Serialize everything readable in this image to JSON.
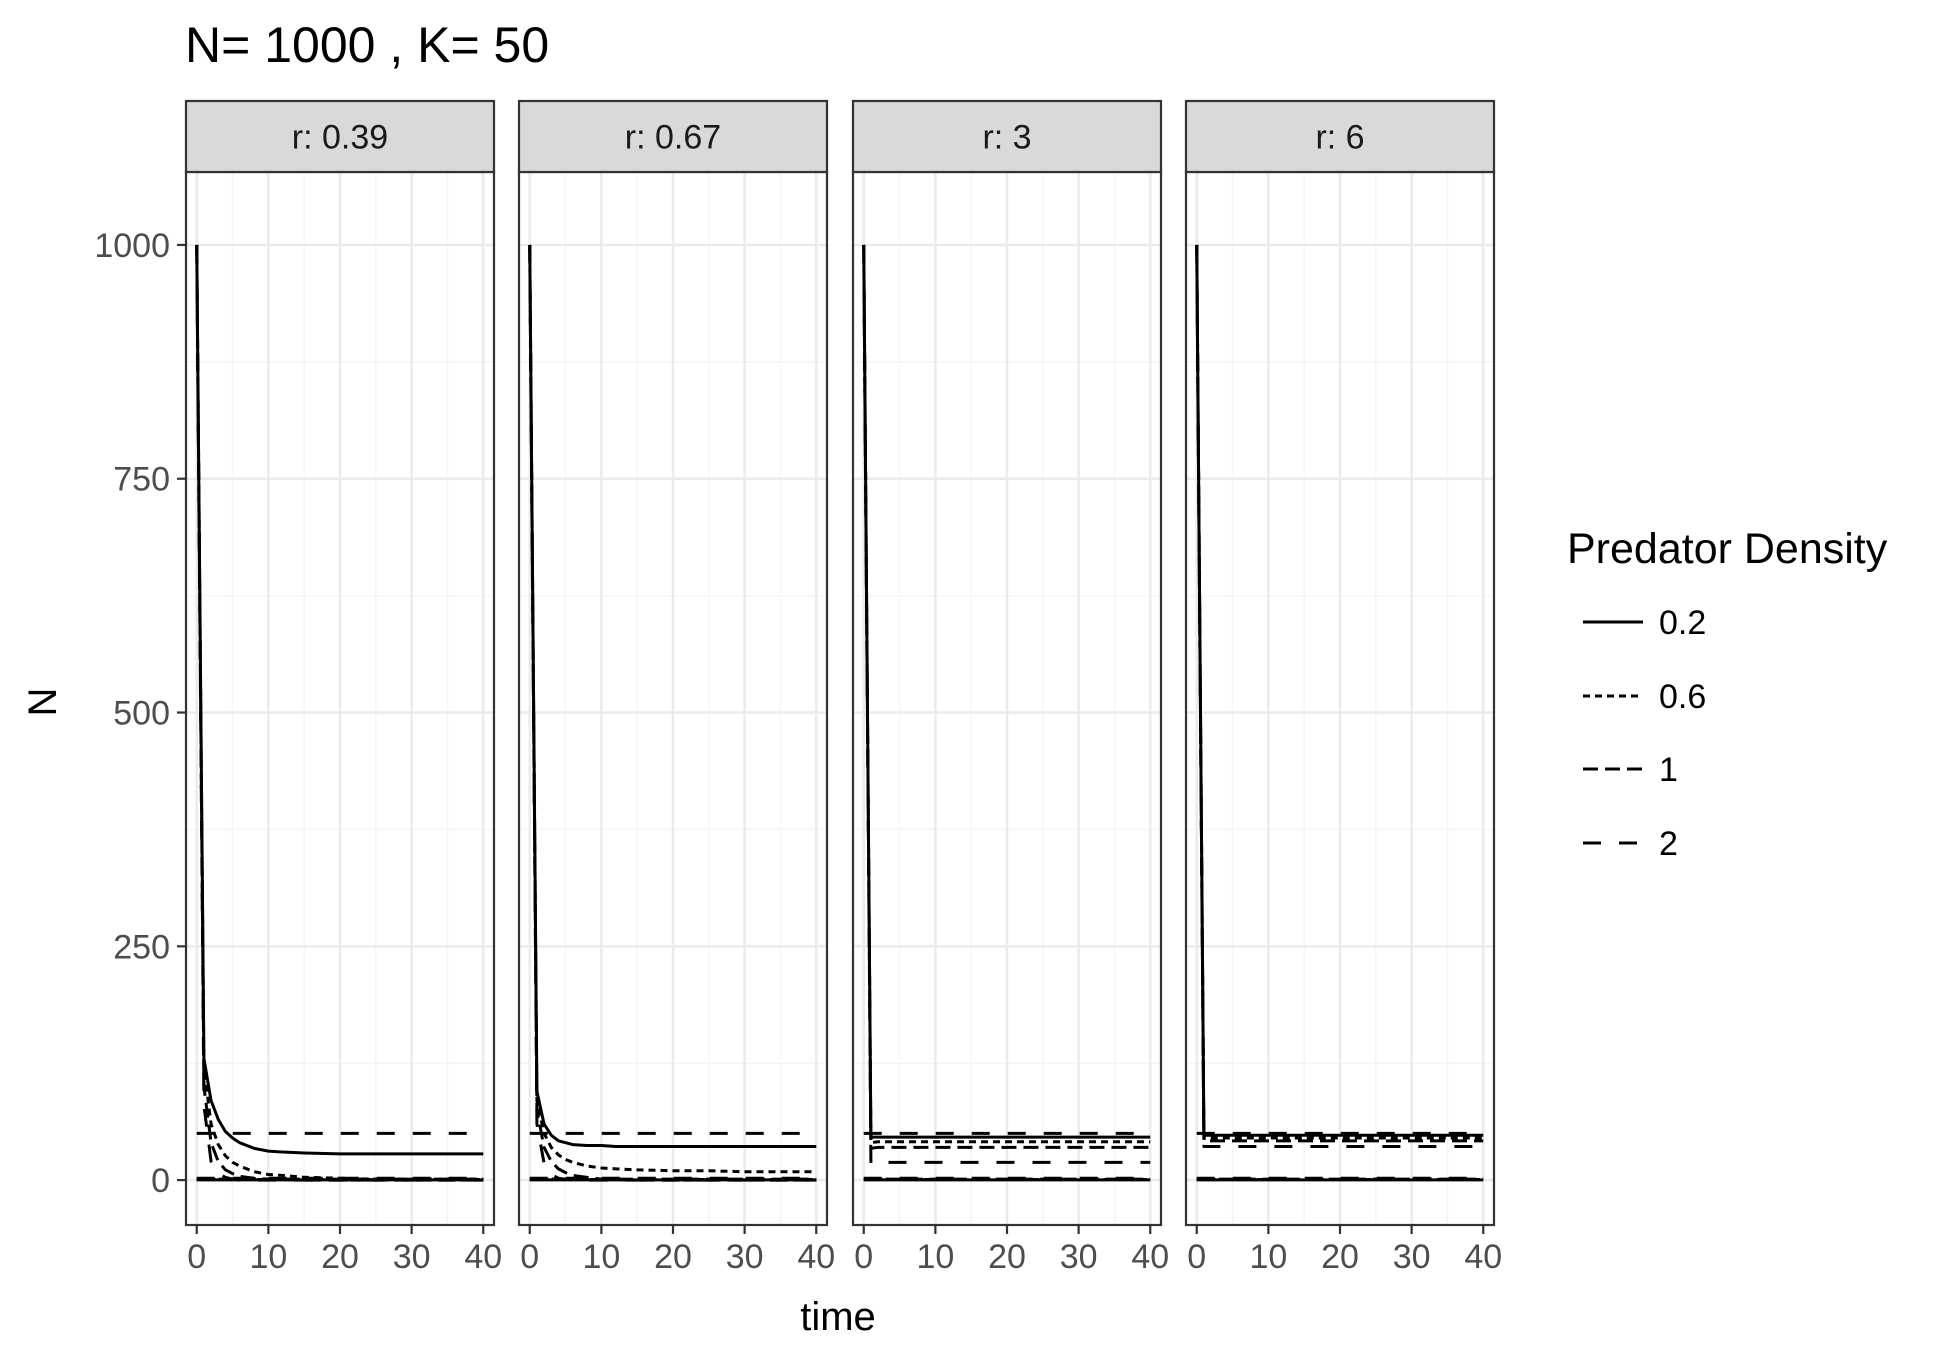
{
  "chart_data": {
    "type": "line",
    "title": "N= 1000 , K= 50",
    "xlabel": "time",
    "ylabel": "N",
    "xlim": [
      -1.5,
      41.5
    ],
    "ylim": [
      -48,
      1078
    ],
    "x_ticks": [
      0,
      10,
      20,
      30,
      40
    ],
    "y_ticks": [
      0,
      250,
      500,
      750,
      1000
    ],
    "grid": true,
    "legend": {
      "title": "Predator Density",
      "position": "right",
      "entries": [
        "0.2",
        "0.6",
        "1",
        "2"
      ]
    },
    "panels": [
      {
        "label": "r: 0.39",
        "series": [
          {
            "name": "0.2",
            "role": "N",
            "x": [
              0,
              1,
              2,
              3,
              4,
              5,
              6,
              8,
              10,
              12,
              15,
              20,
              25,
              30,
              35,
              40
            ],
            "y": [
              1000,
              130,
              85,
              65,
              52,
              45,
              40,
              34,
              31,
              30,
              29,
              28,
              28,
              28,
              28,
              28
            ]
          },
          {
            "name": "0.6",
            "role": "N",
            "x": [
              0,
              1,
              2,
              3,
              4,
              5,
              6,
              8,
              10,
              12,
              15,
              20,
              25,
              30,
              35,
              40
            ],
            "y": [
              1000,
              120,
              60,
              38,
              26,
              19,
              15,
              9,
              6,
              5,
              3,
              2,
              1,
              1,
              1,
              1
            ]
          },
          {
            "name": "1",
            "role": "N",
            "x": [
              0,
              1,
              2,
              3,
              4,
              5,
              6,
              8,
              10,
              15,
              20,
              25,
              30,
              35,
              40
            ],
            "y": [
              1000,
              100,
              40,
              20,
              11,
              7,
              4,
              2,
              1,
              0,
              0,
              0,
              0,
              0,
              0
            ]
          },
          {
            "name": "2",
            "role": "N",
            "x": [
              0,
              1,
              2,
              3,
              4,
              5,
              6,
              8,
              10,
              15,
              20,
              25,
              30,
              35,
              40
            ],
            "y": [
              1000,
              80,
              20,
              7,
              3,
              1,
              0,
              0,
              0,
              0,
              0,
              0,
              0,
              0,
              0
            ]
          },
          {
            "name": "0.2",
            "role": "P",
            "x": [
              0,
              10,
              20,
              30,
              40
            ],
            "y": [
              0.2,
              0.2,
              0.2,
              0.2,
              0.2
            ]
          },
          {
            "name": "0.6",
            "role": "P",
            "x": [
              0,
              10,
              20,
              30,
              40
            ],
            "y": [
              0.6,
              0.6,
              0.6,
              0.6,
              0.6
            ]
          },
          {
            "name": "1",
            "role": "P",
            "x": [
              0,
              10,
              20,
              30,
              40
            ],
            "y": [
              1,
              1,
              1,
              1,
              1
            ]
          },
          {
            "name": "2",
            "role": "P",
            "x": [
              0,
              10,
              20,
              30,
              40
            ],
            "y": [
              2,
              2,
              2,
              2,
              2
            ]
          },
          {
            "name": "2",
            "role": "K",
            "x": [
              0,
              10,
              20,
              30,
              40
            ],
            "y": [
              50,
              50,
              50,
              50,
              50
            ]
          }
        ]
      },
      {
        "label": "r: 0.67",
        "series": [
          {
            "name": "0.2",
            "role": "N",
            "x": [
              0,
              1,
              2,
              3,
              4,
              5,
              6,
              8,
              10,
              12,
              15,
              20,
              25,
              30,
              35,
              40
            ],
            "y": [
              1000,
              95,
              60,
              48,
              42,
              40,
              38,
              37,
              37,
              36,
              36,
              36,
              36,
              36,
              36,
              36
            ]
          },
          {
            "name": "0.6",
            "role": "N",
            "x": [
              0,
              1,
              2,
              3,
              4,
              5,
              6,
              8,
              10,
              12,
              15,
              20,
              25,
              30,
              35,
              40
            ],
            "y": [
              1000,
              85,
              50,
              35,
              27,
              22,
              19,
              15,
              13,
              12,
              11,
              10,
              10,
              9,
              9,
              9
            ]
          },
          {
            "name": "1",
            "role": "N",
            "x": [
              0,
              1,
              2,
              3,
              4,
              5,
              6,
              8,
              10,
              15,
              20,
              25,
              30,
              35,
              40
            ],
            "y": [
              1000,
              75,
              35,
              20,
              12,
              8,
              5,
              3,
              1,
              0,
              0,
              0,
              0,
              0,
              0
            ]
          },
          {
            "name": "2",
            "role": "N",
            "x": [
              0,
              1,
              2,
              3,
              4,
              5,
              6,
              8,
              10,
              15,
              20,
              25,
              30,
              35,
              40
            ],
            "y": [
              1000,
              60,
              18,
              6,
              2,
              1,
              0,
              0,
              0,
              0,
              0,
              0,
              0,
              0,
              0
            ]
          },
          {
            "name": "0.2",
            "role": "P",
            "x": [
              0,
              10,
              20,
              30,
              40
            ],
            "y": [
              0.2,
              0.2,
              0.2,
              0.2,
              0.2
            ]
          },
          {
            "name": "0.6",
            "role": "P",
            "x": [
              0,
              10,
              20,
              30,
              40
            ],
            "y": [
              0.6,
              0.6,
              0.6,
              0.6,
              0.6
            ]
          },
          {
            "name": "1",
            "role": "P",
            "x": [
              0,
              10,
              20,
              30,
              40
            ],
            "y": [
              1,
              1,
              1,
              1,
              1
            ]
          },
          {
            "name": "2",
            "role": "P",
            "x": [
              0,
              10,
              20,
              30,
              40
            ],
            "y": [
              2,
              2,
              2,
              2,
              2
            ]
          },
          {
            "name": "2",
            "role": "K",
            "x": [
              0,
              10,
              20,
              30,
              40
            ],
            "y": [
              50,
              50,
              50,
              50,
              50
            ]
          }
        ]
      },
      {
        "label": "r: 3",
        "series": [
          {
            "name": "0.2",
            "role": "N",
            "x": [
              0,
              1,
              2,
              5,
              10,
              20,
              30,
              40
            ],
            "y": [
              1000,
              46,
              46,
              46,
              46,
              46,
              46,
              46
            ]
          },
          {
            "name": "0.6",
            "role": "N",
            "x": [
              0,
              1,
              2,
              5,
              10,
              20,
              30,
              40
            ],
            "y": [
              1000,
              40,
              41,
              41,
              41,
              41,
              41,
              41
            ]
          },
          {
            "name": "1",
            "role": "N",
            "x": [
              0,
              1,
              2,
              5,
              10,
              20,
              30,
              40
            ],
            "y": [
              1000,
              34,
              35,
              35,
              35,
              35,
              35,
              35
            ]
          },
          {
            "name": "2",
            "role": "N",
            "x": [
              0,
              1,
              2,
              5,
              10,
              20,
              30,
              40
            ],
            "y": [
              1000,
              18,
              19,
              19,
              19,
              19,
              19,
              19
            ]
          },
          {
            "name": "0.2",
            "role": "P",
            "x": [
              0,
              10,
              20,
              30,
              40
            ],
            "y": [
              0.2,
              0.2,
              0.2,
              0.2,
              0.2
            ]
          },
          {
            "name": "0.6",
            "role": "P",
            "x": [
              0,
              10,
              20,
              30,
              40
            ],
            "y": [
              0.6,
              0.6,
              0.6,
              0.6,
              0.6
            ]
          },
          {
            "name": "1",
            "role": "P",
            "x": [
              0,
              10,
              20,
              30,
              40
            ],
            "y": [
              1,
              1,
              1,
              1,
              1
            ]
          },
          {
            "name": "2",
            "role": "P",
            "x": [
              0,
              10,
              20,
              30,
              40
            ],
            "y": [
              2,
              2,
              2,
              2,
              2
            ]
          },
          {
            "name": "2",
            "role": "K",
            "x": [
              0,
              10,
              20,
              30,
              40
            ],
            "y": [
              50,
              50,
              50,
              50,
              50
            ]
          }
        ]
      },
      {
        "label": "r: 6",
        "series": [
          {
            "name": "0.2",
            "role": "N",
            "x": [
              0,
              1,
              2,
              5,
              10,
              20,
              30,
              40
            ],
            "y": [
              1000,
              48,
              48,
              48,
              48,
              48,
              48,
              48
            ]
          },
          {
            "name": "0.6",
            "role": "N",
            "x": [
              0,
              1,
              2,
              5,
              10,
              20,
              30,
              40
            ],
            "y": [
              1000,
              45,
              45,
              45,
              45,
              45,
              45,
              45
            ]
          },
          {
            "name": "1",
            "role": "N",
            "x": [
              0,
              1,
              2,
              5,
              10,
              20,
              30,
              40
            ],
            "y": [
              1000,
              42,
              42,
              42,
              42,
              42,
              42,
              42
            ]
          },
          {
            "name": "2",
            "role": "N",
            "x": [
              0,
              1,
              2,
              5,
              10,
              20,
              30,
              40
            ],
            "y": [
              1000,
              36,
              36,
              36,
              36,
              36,
              36,
              36
            ]
          },
          {
            "name": "0.2",
            "role": "P",
            "x": [
              0,
              10,
              20,
              30,
              40
            ],
            "y": [
              0.2,
              0.2,
              0.2,
              0.2,
              0.2
            ]
          },
          {
            "name": "0.6",
            "role": "P",
            "x": [
              0,
              10,
              20,
              30,
              40
            ],
            "y": [
              0.6,
              0.6,
              0.6,
              0.6,
              0.6
            ]
          },
          {
            "name": "1",
            "role": "P",
            "x": [
              0,
              10,
              20,
              30,
              40
            ],
            "y": [
              1,
              1,
              1,
              1,
              1
            ]
          },
          {
            "name": "2",
            "role": "P",
            "x": [
              0,
              10,
              20,
              30,
              40
            ],
            "y": [
              2,
              2,
              2,
              2,
              2
            ]
          },
          {
            "name": "2",
            "role": "K",
            "x": [
              0,
              10,
              20,
              30,
              40
            ],
            "y": [
              50,
              50,
              50,
              50,
              50
            ]
          }
        ]
      }
    ]
  },
  "styles": {
    "line_color": "#000000",
    "panel_border_color": "#333333",
    "grid_major_color": "#ebebeb",
    "grid_minor_color": "#f5f5f5",
    "strip_fill_color": "#d9d9d9",
    "tick_label_color": "#4d4d4d",
    "dash_patterns": {
      "0.2": "",
      "0.6": "7 5",
      "1": "15 7",
      "2": "18 18"
    }
  }
}
